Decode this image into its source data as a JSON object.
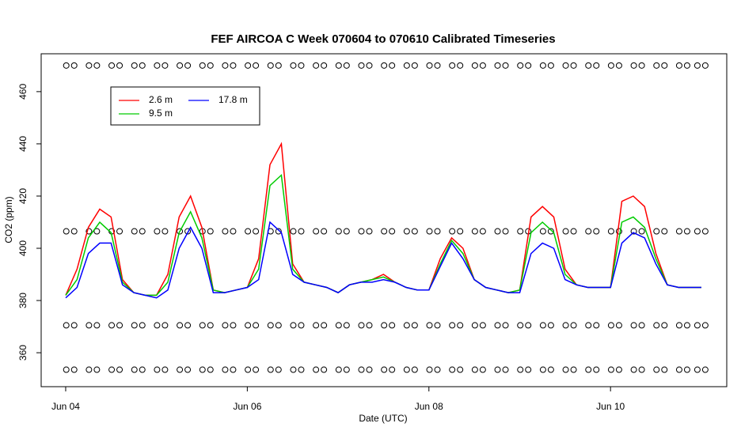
{
  "chart_data": {
    "type": "line",
    "title": "FEF AIRCOA C  Week 070604 to 070610  Calibrated Timeseries",
    "xlabel": "Date (UTC)",
    "ylabel": "CO2 (ppm)",
    "x": [
      0,
      0.125,
      0.25,
      0.375,
      0.5,
      0.625,
      0.75,
      0.875,
      1,
      1.125,
      1.25,
      1.375,
      1.5,
      1.625,
      1.75,
      1.875,
      2,
      2.125,
      2.25,
      2.375,
      2.5,
      2.625,
      2.75,
      2.875,
      3,
      3.125,
      3.25,
      3.375,
      3.5,
      3.625,
      3.75,
      3.875,
      4,
      4.125,
      4.25,
      4.375,
      4.5,
      4.625,
      4.75,
      4.875,
      5,
      5.125,
      5.25,
      5.375,
      5.5,
      5.625,
      5.75,
      5.875,
      6,
      6.125,
      6.25,
      6.375,
      6.5,
      6.625,
      6.75,
      6.875,
      7
    ],
    "series": [
      {
        "name": "2.6 m",
        "color": "#ff0000",
        "values": [
          382,
          392,
          408,
          415,
          412,
          388,
          383,
          382,
          382,
          390,
          412,
          420,
          408,
          384,
          383,
          384,
          385,
          396,
          432,
          440,
          394,
          387,
          386,
          385,
          383,
          386,
          387,
          388,
          390,
          387,
          385,
          384,
          384,
          396,
          404,
          400,
          388,
          385,
          384,
          383,
          384,
          412,
          416,
          412,
          392,
          386,
          385,
          385,
          385,
          418,
          420,
          416,
          398,
          386,
          385,
          385,
          385
        ]
      },
      {
        "name": "9.5 m",
        "color": "#00cc00",
        "values": [
          382,
          388,
          404,
          410,
          406,
          387,
          383,
          382,
          382,
          387,
          406,
          414,
          404,
          384,
          383,
          384,
          385,
          392,
          424,
          428,
          392,
          387,
          386,
          385,
          383,
          386,
          387,
          388,
          389,
          387,
          385,
          384,
          384,
          394,
          403,
          398,
          388,
          385,
          384,
          383,
          384,
          406,
          410,
          406,
          390,
          386,
          385,
          385,
          385,
          410,
          412,
          408,
          396,
          386,
          385,
          385,
          385
        ]
      },
      {
        "name": "17.8 m",
        "color": "#0000ff",
        "values": [
          381,
          385,
          398,
          402,
          402,
          386,
          383,
          382,
          381,
          384,
          400,
          408,
          400,
          383,
          383,
          384,
          385,
          388,
          410,
          406,
          390,
          387,
          386,
          385,
          383,
          386,
          387,
          387,
          388,
          387,
          385,
          384,
          384,
          393,
          402,
          396,
          388,
          385,
          384,
          383,
          383,
          398,
          402,
          400,
          388,
          386,
          385,
          385,
          385,
          402,
          406,
          404,
          394,
          386,
          385,
          385,
          385
        ]
      }
    ],
    "calibration": {
      "x": [
        0.05,
        0.3,
        0.55,
        0.8,
        1.05,
        1.3,
        1.55,
        1.8,
        2.05,
        2.3,
        2.55,
        2.8,
        3.05,
        3.3,
        3.55,
        3.8,
        4.05,
        4.3,
        4.55,
        4.8,
        5.05,
        5.3,
        5.55,
        5.8,
        6.05,
        6.3,
        6.55,
        6.8,
        7.0
      ],
      "levels": [
        470,
        406.5,
        370.5,
        353.5
      ]
    },
    "xlim": [
      -0.27,
      7.28
    ],
    "xticks": [
      {
        "value": 0,
        "label": "Jun 04"
      },
      {
        "value": 2,
        "label": "Jun 06"
      },
      {
        "value": 4,
        "label": "Jun 08"
      },
      {
        "value": 6,
        "label": "Jun 10"
      }
    ],
    "ylim": [
      347,
      474.5
    ],
    "yticks": [
      360,
      380,
      400,
      420,
      440,
      460
    ]
  }
}
